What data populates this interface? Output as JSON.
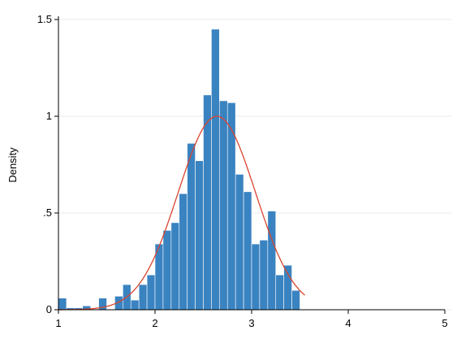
{
  "chart_data": {
    "type": "bar",
    "title": "",
    "xlabel": "",
    "ylabel": "Density",
    "xlim": [
      1,
      5
    ],
    "ylim": [
      0,
      1.5
    ],
    "x_ticks": [
      {
        "value": 1,
        "label": "1"
      },
      {
        "value": 2,
        "label": "2"
      },
      {
        "value": 3,
        "label": "3"
      },
      {
        "value": 4,
        "label": "4"
      },
      {
        "value": 5,
        "label": "5"
      }
    ],
    "y_ticks": [
      {
        "value": 0,
        "label": "0"
      },
      {
        "value": 0.5,
        "label": ".5"
      },
      {
        "value": 1,
        "label": "1"
      },
      {
        "value": 1.5,
        "label": "1.5"
      }
    ],
    "grid": true,
    "legend": "none",
    "bin_width": 0.0833,
    "bins": [
      {
        "x0": 1.0,
        "value": 0.06
      },
      {
        "x0": 1.0833,
        "value": 0.01
      },
      {
        "x0": 1.1667,
        "value": 0.01
      },
      {
        "x0": 1.25,
        "value": 0.02
      },
      {
        "x0": 1.3333,
        "value": 0.0
      },
      {
        "x0": 1.4167,
        "value": 0.06
      },
      {
        "x0": 1.5,
        "value": 0.0
      },
      {
        "x0": 1.5833,
        "value": 0.07
      },
      {
        "x0": 1.6667,
        "value": 0.13
      },
      {
        "x0": 1.75,
        "value": 0.05
      },
      {
        "x0": 1.8333,
        "value": 0.13
      },
      {
        "x0": 1.9167,
        "value": 0.18
      },
      {
        "x0": 2.0,
        "value": 0.34
      },
      {
        "x0": 2.0833,
        "value": 0.41
      },
      {
        "x0": 2.1667,
        "value": 0.45
      },
      {
        "x0": 2.25,
        "value": 0.6
      },
      {
        "x0": 2.3333,
        "value": 0.86
      },
      {
        "x0": 2.4167,
        "value": 0.77
      },
      {
        "x0": 2.5,
        "value": 1.11
      },
      {
        "x0": 2.5833,
        "value": 1.45
      },
      {
        "x0": 2.6667,
        "value": 1.08
      },
      {
        "x0": 2.75,
        "value": 1.07
      },
      {
        "x0": 2.8333,
        "value": 0.7
      },
      {
        "x0": 2.9167,
        "value": 0.61
      },
      {
        "x0": 3.0,
        "value": 0.34
      },
      {
        "x0": 3.0833,
        "value": 0.36
      },
      {
        "x0": 3.1667,
        "value": 0.51
      },
      {
        "x0": 3.25,
        "value": 0.18
      },
      {
        "x0": 3.3333,
        "value": 0.23
      },
      {
        "x0": 3.4167,
        "value": 0.1
      }
    ],
    "density_curve": {
      "mean": 2.64,
      "sd": 0.4,
      "peak": 1.0,
      "x_range": [
        1.0,
        3.55
      ]
    },
    "colors": {
      "bar": "#3a83c1",
      "curve": "#d9452f",
      "grid": "#e6eaee"
    }
  }
}
